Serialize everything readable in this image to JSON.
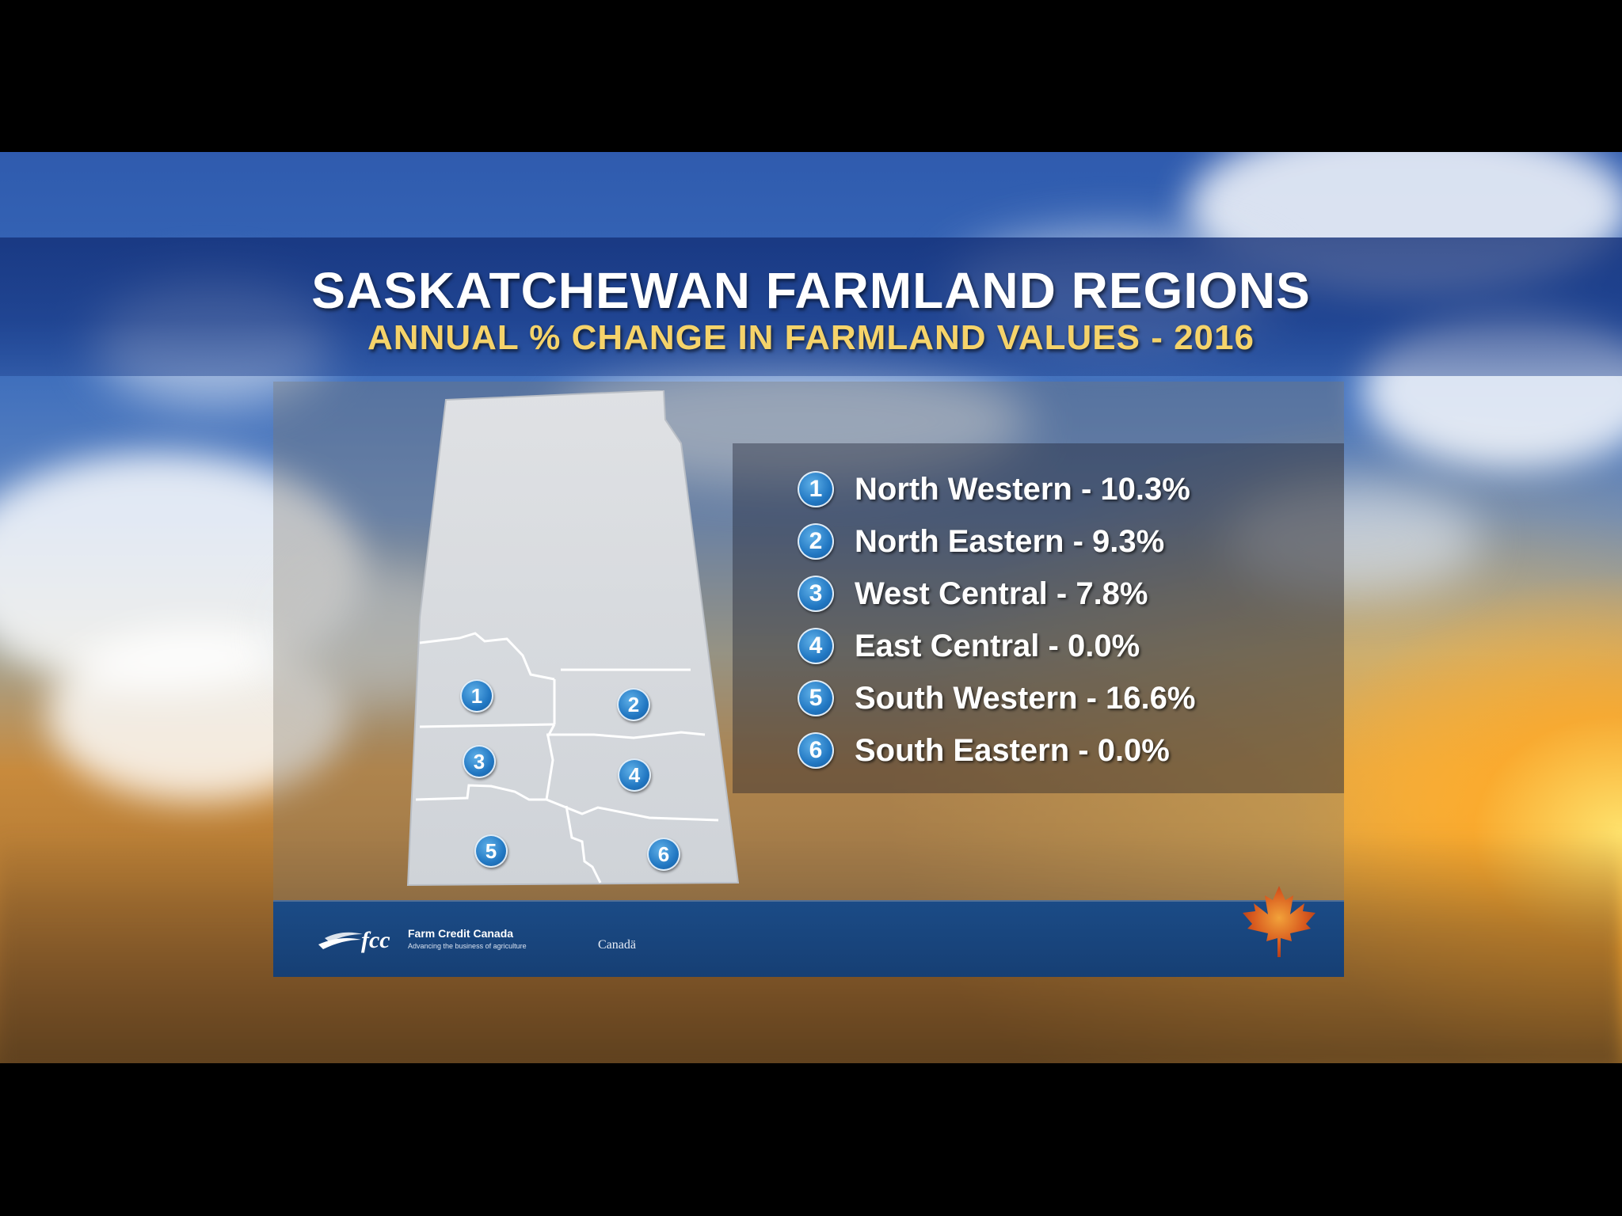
{
  "header": {
    "title": "SASKATCHEWAN FARMLAND REGIONS",
    "subtitle": "ANNUAL % CHANGE IN FARMLAND VALUES - 2016"
  },
  "map": {
    "markers": [
      "1",
      "2",
      "3",
      "4",
      "5",
      "6"
    ]
  },
  "legend": {
    "items": [
      {
        "num": "1",
        "label": "North Western - 10.3%"
      },
      {
        "num": "2",
        "label": "North Eastern - 9.3%"
      },
      {
        "num": "3",
        "label": "West Central - 7.8%"
      },
      {
        "num": "4",
        "label": "East Central - 0.0%"
      },
      {
        "num": "5",
        "label": "South Western - 16.6%"
      },
      {
        "num": "6",
        "label": "South Eastern - 0.0%"
      }
    ]
  },
  "footer": {
    "org_name": "Farm Credit Canada",
    "tagline": "Advancing the business of agriculture",
    "wordmark": "Canadä"
  },
  "colors": {
    "title": "#ffffff",
    "subtitle": "#f5d36a",
    "marker": "#2278c3",
    "footer": "#1b4b86",
    "map_fill": "#d7dadd"
  },
  "icons": {
    "logo": "fcc-logo-icon",
    "maple": "maple-leaf-icon"
  }
}
